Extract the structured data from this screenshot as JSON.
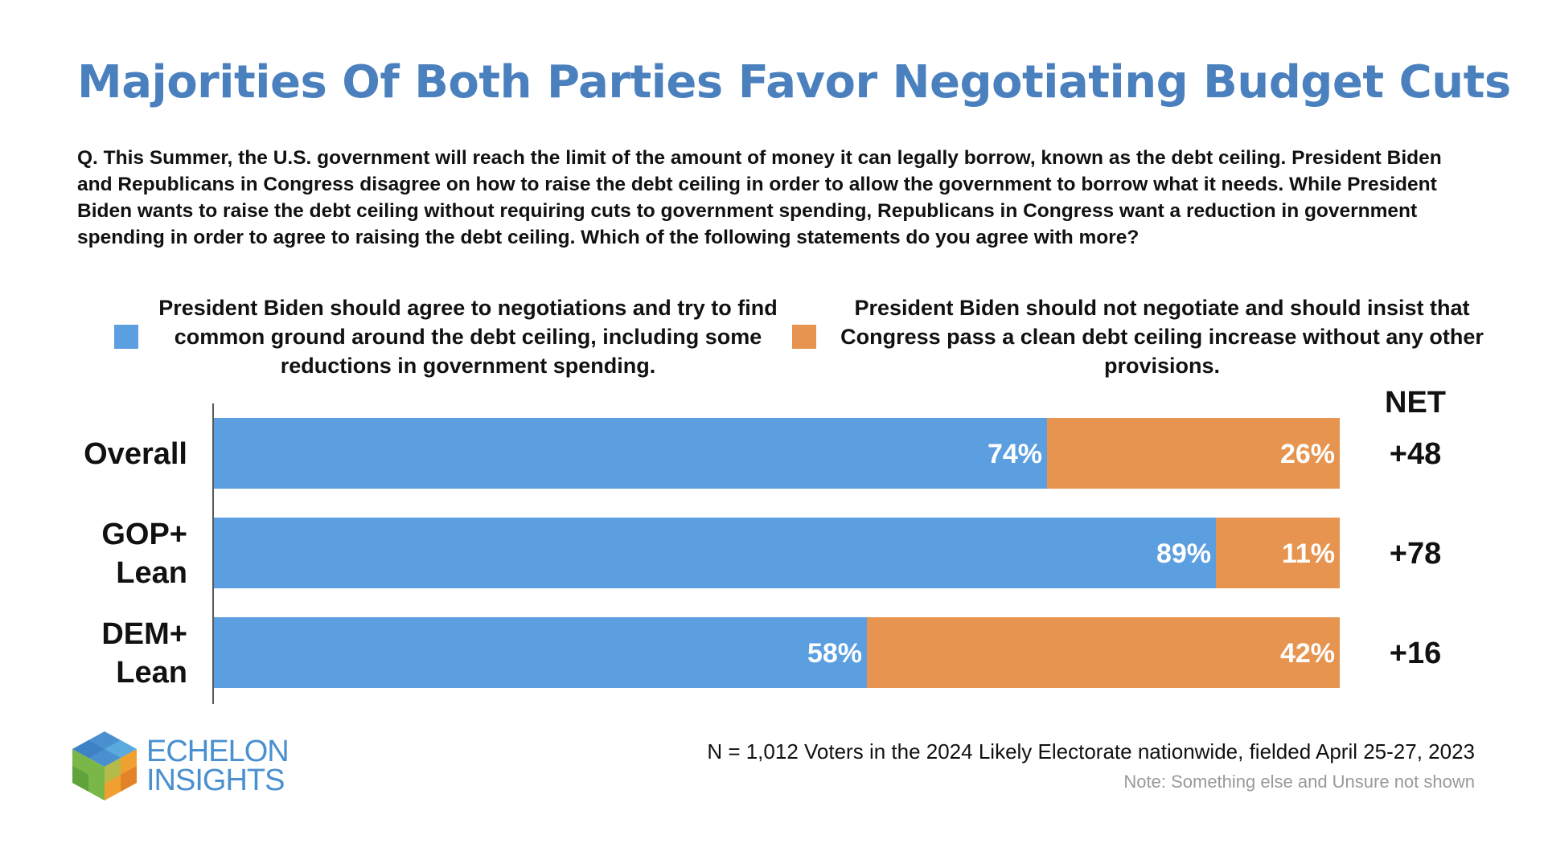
{
  "colors": {
    "title": "#4a80bd",
    "negotiate": "#5b9fe0",
    "no_negotiate": "#e6944f"
  },
  "header": {
    "title": "Majorities Of Both Parties Favor Negotiating Budget Cuts",
    "question": "Q. This Summer, the U.S. government will reach the limit of the amount of money it can legally borrow, known as the debt ceiling. President Biden and Republicans in Congress disagree on how to raise the debt ceiling in order to allow the government to borrow what it needs. While President Biden wants to raise the debt ceiling without requiring cuts to government spending, Republicans in Congress want a reduction in government spending in order to agree to raising the debt ceiling. Which of the following statements do you agree with more?"
  },
  "chart_data": {
    "type": "bar",
    "orientation": "horizontal",
    "stacked": true,
    "categories": [
      [
        "Overall"
      ],
      [
        "GOP+",
        "Lean"
      ],
      [
        "DEM+",
        "Lean"
      ]
    ],
    "series": [
      {
        "name": "President Biden should agree to negotiations and try to find common ground around the debt ceiling, including some reductions in government spending.",
        "values": [
          74,
          89,
          58
        ],
        "labels": [
          "74%",
          "89%",
          "58%"
        ],
        "color": "#5b9fe0"
      },
      {
        "name": "President Biden should not negotiate and should insist that Congress pass a clean debt ceiling increase without any other provisions.",
        "values": [
          26,
          11,
          42
        ],
        "labels": [
          "26%",
          "11%",
          "42%"
        ],
        "color": "#e6944f"
      }
    ],
    "net_header": "NET",
    "net": [
      "+48",
      "+78",
      "+16"
    ],
    "xlim": [
      0,
      100
    ],
    "grid": false,
    "legend": "top"
  },
  "footer": {
    "logo_line1": "ECHELON",
    "logo_line2": "INSIGHTS",
    "sample": "N = 1,012 Voters in the 2024 Likely Electorate nationwide, fielded April 25-27, 2023",
    "note": "Note: Something else and Unsure not shown"
  }
}
